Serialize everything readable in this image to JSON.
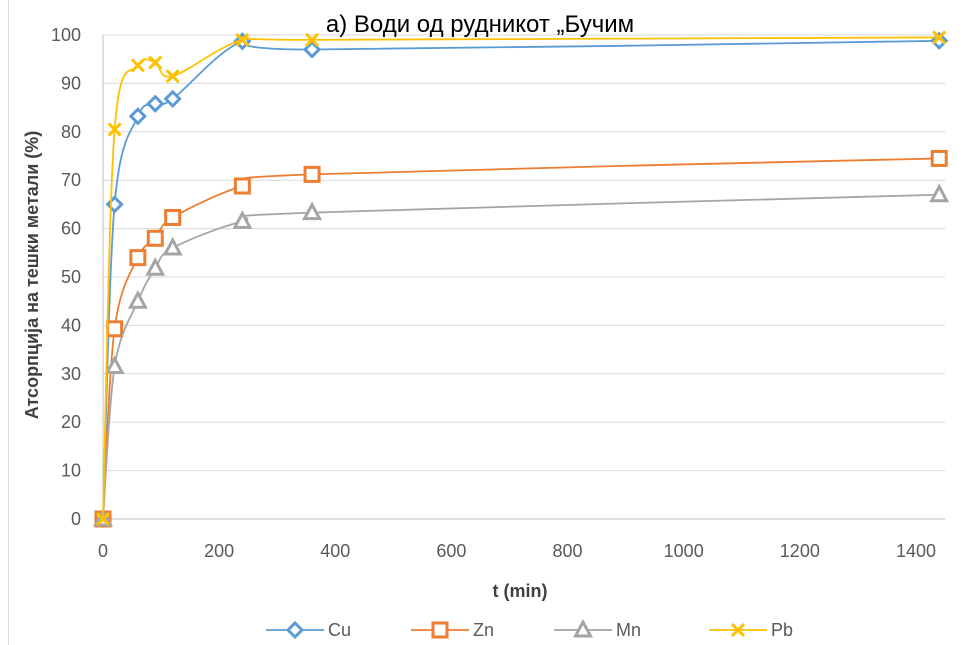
{
  "chart_data": {
    "type": "scatter",
    "title": "a) Води од рудникот „Бучим",
    "xlabel": "t (min)",
    "ylabel": "Атсорпција на тешки метали (%)",
    "xlim": [
      0,
      1450
    ],
    "ylim": [
      0,
      100
    ],
    "xticks": [
      0,
      200,
      400,
      600,
      800,
      1000,
      1200,
      1400
    ],
    "yticks": [
      0,
      10,
      20,
      30,
      40,
      50,
      60,
      70,
      80,
      90,
      100
    ],
    "grid": "horizontal",
    "legend_position": "bottom",
    "series": [
      {
        "name": "Cu",
        "color": "#5b9bd5",
        "marker": "diamond",
        "x": [
          0,
          20,
          60,
          90,
          120,
          240,
          360,
          1440
        ],
        "y": [
          0,
          65,
          83.2,
          85.8,
          86.8,
          98.7,
          97,
          98.8
        ]
      },
      {
        "name": "Zn",
        "color": "#ed7d31",
        "marker": "square",
        "x": [
          0,
          20,
          60,
          90,
          120,
          240,
          360,
          1440
        ],
        "y": [
          0,
          39.3,
          54,
          58,
          62.3,
          68.8,
          71.2,
          74.5
        ]
      },
      {
        "name": "Mn",
        "color": "#a5a5a5",
        "marker": "triangle",
        "x": [
          0,
          20,
          60,
          90,
          120,
          240,
          360,
          1440
        ],
        "y": [
          0,
          31.5,
          45,
          51.8,
          56,
          61.5,
          63.3,
          67
        ]
      },
      {
        "name": "Pb",
        "color": "#ffc000",
        "marker": "x",
        "x": [
          0,
          20,
          60,
          90,
          120,
          240,
          360,
          1440
        ],
        "y": [
          0,
          80.5,
          93.7,
          94.3,
          91.5,
          99,
          99,
          99.5
        ]
      }
    ]
  }
}
